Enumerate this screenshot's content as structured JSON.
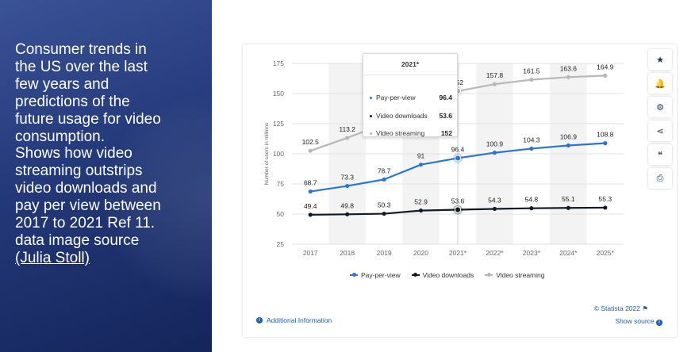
{
  "slide": {
    "lines": [
      "Consumer trends in",
      "the US over the last",
      "few years and",
      "predictions of the",
      "future usage for video",
      "consumption.",
      "Shows how video",
      "streaming outstrips",
      "video downloads and",
      "pay per view between",
      "2017 to 2021 Ref 11.",
      "data image source"
    ],
    "link": "(Julia Stoll)"
  },
  "chart_data": {
    "type": "line",
    "categories": [
      "2017",
      "2018",
      "2019",
      "2020",
      "2021*",
      "2022*",
      "2023*",
      "2024*",
      "2025*"
    ],
    "ylabel": "Number of users in millions",
    "ylim": [
      25,
      175
    ],
    "yticks": [
      25,
      50,
      75,
      100,
      125,
      150,
      175
    ],
    "ytick_labels": [
      "25",
      "50",
      "75",
      "100",
      "125",
      "150",
      "175"
    ],
    "grid": "horizontal",
    "legend_position": "bottom",
    "series": [
      {
        "name": "Pay-per-view",
        "color": "#2a76d2",
        "values": [
          68.7,
          73.3,
          78.7,
          91,
          96.4,
          100.9,
          104.3,
          106.9,
          108.8
        ],
        "labels": [
          "68.7",
          "73.3",
          "78.7",
          "91",
          "96.4",
          "100.9",
          "104.3",
          "106.9",
          "108.8"
        ]
      },
      {
        "name": "Video downloads",
        "color": "#0f1c2c",
        "values": [
          49.4,
          49.8,
          50.3,
          52.9,
          53.6,
          54.3,
          54.8,
          55.1,
          55.3
        ],
        "labels": [
          "49.4",
          "49.8",
          "50.3",
          "52.9",
          "53.6",
          "54.3",
          "54.8",
          "55.1",
          "55.3"
        ]
      },
      {
        "name": "Video streaming",
        "color": "#b8b8b8",
        "values": [
          102.5,
          113.2,
          125,
          140,
          152,
          157.8,
          161.5,
          163.6,
          164.9
        ],
        "labels": [
          "102.5",
          "113.2",
          "",
          "",
          "152",
          "157.8",
          "161.5",
          "163.6",
          "164.9"
        ]
      }
    ],
    "highlight_index": 4
  },
  "tooltip": {
    "title": "2021*",
    "rows": [
      {
        "name": "Pay-per-view",
        "value": "96.4",
        "color": "#2a76d2"
      },
      {
        "name": "Video downloads",
        "value": "53.6",
        "color": "#0f1c2c"
      },
      {
        "name": "Video streaming",
        "value": "152",
        "color": "#b8b8b8"
      }
    ]
  },
  "legend": [
    {
      "name": "Pay-per-view",
      "color": "#2a76d2"
    },
    {
      "name": "Video downloads",
      "color": "#0f1c2c"
    },
    {
      "name": "Video streaming",
      "color": "#b8b8b8"
    }
  ],
  "footer": {
    "copyright": "© Statista 2022",
    "show_source": "Show source",
    "additional_info": "Additional Information"
  },
  "sidebar_icons": [
    "star-icon",
    "bell-icon",
    "gear-icon",
    "share-icon",
    "quote-icon",
    "print-icon"
  ],
  "sidebar_glyphs": [
    "★",
    "🔔",
    "⚙",
    "⋖",
    "❝",
    "⎙"
  ]
}
